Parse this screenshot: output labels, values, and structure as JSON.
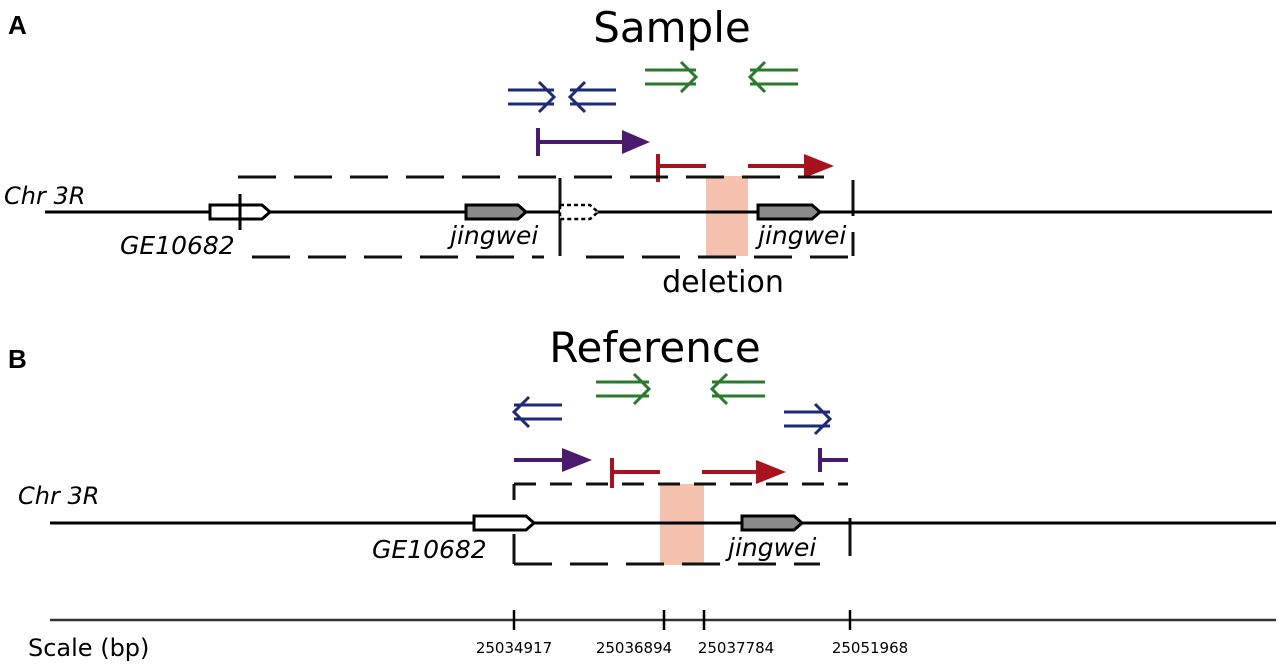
{
  "panels": {
    "a": {
      "letter": "A",
      "title": "Sample",
      "chromosome": "Chr 3R",
      "gene_ge": "GE10682",
      "gene_jingwei_1": "jingwei",
      "gene_jingwei_2": "jingwei",
      "deletion_label": "deletion"
    },
    "b": {
      "letter": "B",
      "title": "Reference",
      "chromosome": "Chr 3R",
      "gene_ge": "GE10682",
      "gene_jingwei": "jingwei"
    }
  },
  "scale": {
    "label": "Scale (bp)",
    "ticks": [
      "25034917",
      "25036894",
      "25037784",
      "25051968"
    ]
  },
  "colors": {
    "primer_blue": "#1c2a78",
    "primer_green": "#2a7a2e",
    "read_purple": "#4a1a6e",
    "read_red": "#a8121e",
    "deletion_fill": "#f5c2b0",
    "gene_fill": "#8a8a8a"
  }
}
